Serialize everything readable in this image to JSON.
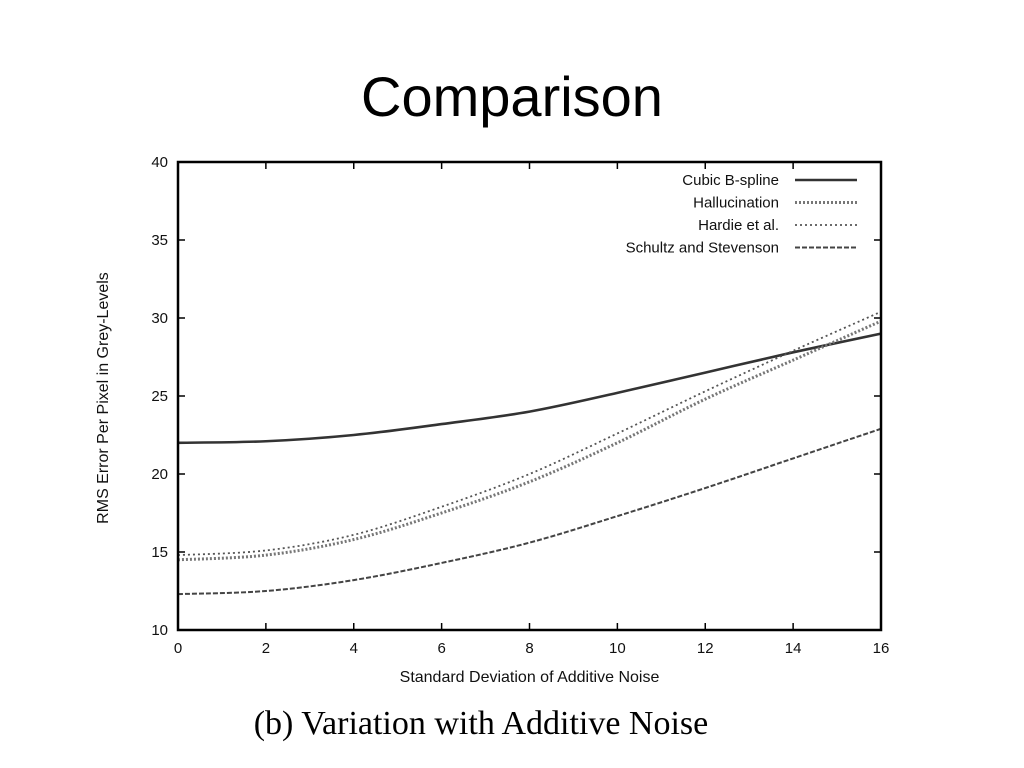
{
  "slide": {
    "title": "Comparison",
    "caption": "(b) Variation with Additive Noise"
  },
  "chart_data": {
    "type": "line",
    "title": "",
    "xlabel": "Standard Deviation of Additive Noise",
    "ylabel": "RMS Error Per Pixel in Grey-Levels",
    "xlim": [
      0,
      16
    ],
    "ylim": [
      10,
      40
    ],
    "xticks": [
      0,
      2,
      4,
      6,
      8,
      10,
      12,
      14,
      16
    ],
    "yticks": [
      10,
      15,
      20,
      25,
      30,
      35,
      40
    ],
    "grid": false,
    "legend_position": "top-right",
    "x": [
      0,
      2,
      4,
      6,
      8,
      10,
      12,
      14,
      16
    ],
    "series": [
      {
        "name": "Cubic B-spline",
        "style": "solid",
        "color": "#333333",
        "values": [
          22.0,
          22.1,
          22.5,
          23.2,
          24.0,
          25.2,
          26.5,
          27.8,
          29.0
        ]
      },
      {
        "name": "Hallucination",
        "style": "dotted-thick",
        "color": "#777777",
        "values": [
          14.5,
          14.8,
          15.8,
          17.5,
          19.5,
          22.0,
          24.8,
          27.3,
          29.8
        ]
      },
      {
        "name": "Hardie et al.",
        "style": "dotted",
        "color": "#555555",
        "values": [
          14.8,
          15.1,
          16.1,
          17.9,
          20.0,
          22.6,
          25.3,
          27.9,
          30.4
        ]
      },
      {
        "name": "Schultz and Stevenson",
        "style": "dashed",
        "color": "#444444",
        "values": [
          12.3,
          12.5,
          13.2,
          14.3,
          15.6,
          17.3,
          19.1,
          21.0,
          22.9
        ]
      }
    ]
  }
}
